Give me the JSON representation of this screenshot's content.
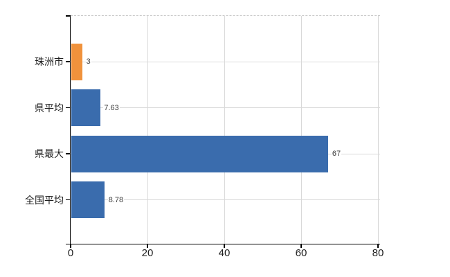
{
  "chart_data": {
    "type": "bar",
    "orientation": "horizontal",
    "title": "",
    "categories": [
      "珠洲市",
      "県平均",
      "県最大",
      "全国平均"
    ],
    "values": [
      3,
      7.63,
      67,
      8.78
    ],
    "value_labels": [
      "3",
      "7.63",
      "67",
      "8.78"
    ],
    "x_ticks": [
      0,
      20,
      40,
      60,
      80
    ],
    "x_tick_labels": [
      "0",
      "20",
      "40",
      "60",
      "80"
    ],
    "xlim": [
      0,
      80
    ],
    "grid": true,
    "legend": false,
    "colors": {
      "bar_default": "#3a6cad",
      "bar_highlight": "#f0923c",
      "bar_colors": [
        "#f0923c",
        "#3a6cad",
        "#3a6cad",
        "#3a6cad"
      ],
      "gridline": "#d9d9d9",
      "axis": "#000000",
      "category_text": "#1f1f1f",
      "tick_text": "#1f1f1f",
      "value_text": "#3f3f3f",
      "background": "#ffffff"
    }
  }
}
